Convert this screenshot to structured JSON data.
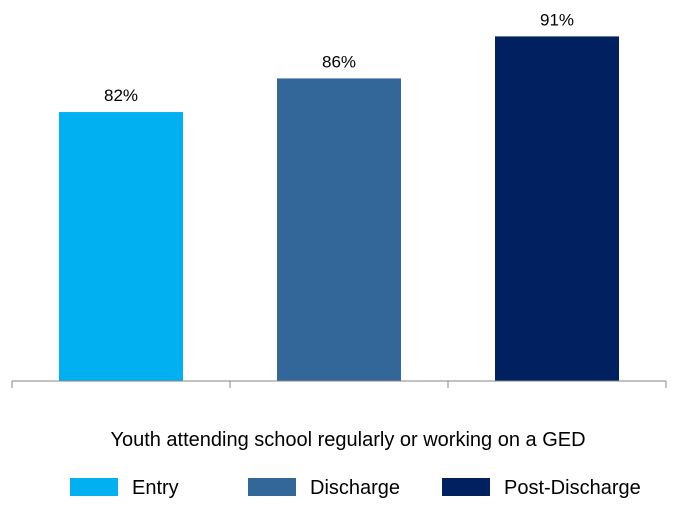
{
  "chart_data": {
    "type": "bar",
    "categories": [
      "Entry",
      "Discharge",
      "Post-Discharge"
    ],
    "series": [
      {
        "name": "",
        "values": [
          82,
          86,
          91
        ],
        "data_labels": [
          "82%",
          "86%",
          "91%"
        ],
        "colors": [
          "#00b0f0",
          "#336699",
          "#002060"
        ]
      }
    ],
    "title": "",
    "xlabel": "Youth attending school regularly or working on a GED",
    "ylabel": "",
    "ylim": [
      50,
      92
    ],
    "grid": false,
    "legend": {
      "placement": "bottom",
      "entries": [
        {
          "label": "Entry",
          "color": "#00b0f0"
        },
        {
          "label": "Discharge",
          "color": "#336699"
        },
        {
          "label": "Post-Discharge",
          "color": "#002060"
        }
      ]
    }
  }
}
